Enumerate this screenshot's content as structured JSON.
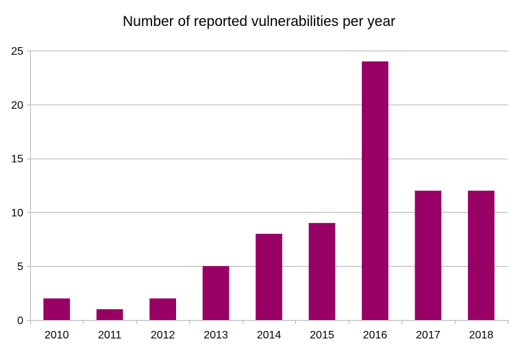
{
  "chart_data": {
    "type": "bar",
    "title": "Number of reported vulnerabilities per year",
    "categories": [
      "2010",
      "2011",
      "2012",
      "2013",
      "2014",
      "2015",
      "2016",
      "2017",
      "2018"
    ],
    "values": [
      2,
      1,
      2,
      5,
      8,
      9,
      24,
      12,
      12
    ],
    "xlabel": "",
    "ylabel": "",
    "ylim": [
      0,
      25
    ],
    "yticks": [
      "0",
      "5",
      "10",
      "15",
      "20",
      "25"
    ],
    "grid": "horizontal",
    "legend": "none",
    "bar_color": "#990066",
    "grid_color": "#b3b3b3",
    "axis_color": "#b3b3b3"
  }
}
